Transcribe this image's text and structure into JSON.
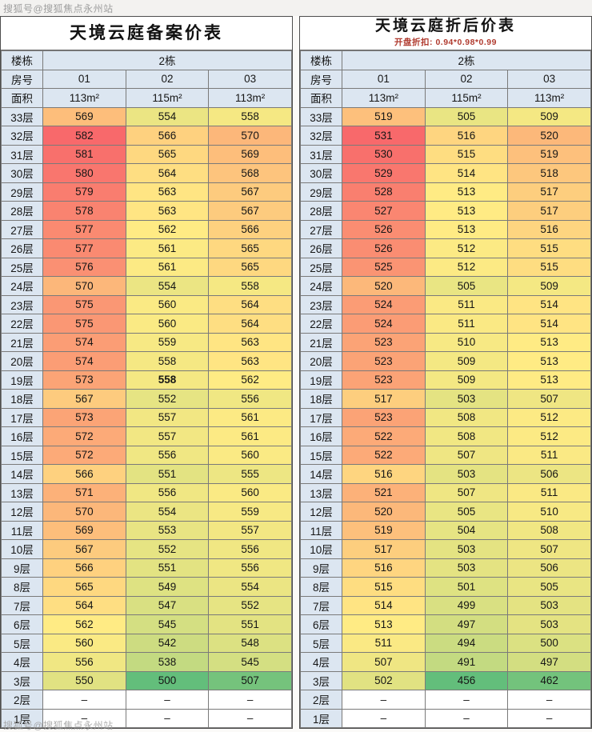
{
  "watermark": "搜狐号@搜狐焦点永州站",
  "header": {
    "building_label": "楼栋",
    "building_value": "2栋",
    "room_label": "房号",
    "rooms": [
      "01",
      "02",
      "03"
    ],
    "area_label": "面积",
    "areas": [
      "113m²",
      "115m²",
      "113m²"
    ]
  },
  "floors": [
    "33层",
    "32层",
    "31层",
    "30层",
    "29层",
    "28层",
    "27层",
    "26层",
    "25层",
    "24层",
    "23层",
    "22层",
    "21层",
    "20层",
    "19层",
    "18层",
    "17层",
    "16层",
    "15层",
    "14层",
    "13层",
    "12层",
    "11层",
    "10层",
    "9层",
    "8层",
    "7层",
    "6层",
    "5层",
    "4层",
    "3层",
    "2层",
    "1层"
  ],
  "dash": "–",
  "chart_data": [
    {
      "type": "heatmap",
      "title": "天境云庭备案价表",
      "subtitle": "",
      "columns": [
        "01",
        "02",
        "03"
      ],
      "values": [
        [
          569,
          554,
          558
        ],
        [
          582,
          566,
          570
        ],
        [
          581,
          565,
          569
        ],
        [
          580,
          564,
          568
        ],
        [
          579,
          563,
          567
        ],
        [
          578,
          563,
          567
        ],
        [
          577,
          562,
          566
        ],
        [
          577,
          561,
          565
        ],
        [
          576,
          561,
          565
        ],
        [
          570,
          554,
          558
        ],
        [
          575,
          560,
          564
        ],
        [
          575,
          560,
          564
        ],
        [
          574,
          559,
          563
        ],
        [
          574,
          558,
          563
        ],
        [
          573,
          558,
          562
        ],
        [
          567,
          552,
          556
        ],
        [
          573,
          557,
          561
        ],
        [
          572,
          557,
          561
        ],
        [
          572,
          556,
          560
        ],
        [
          566,
          551,
          555
        ],
        [
          571,
          556,
          560
        ],
        [
          570,
          554,
          559
        ],
        [
          569,
          553,
          557
        ],
        [
          567,
          552,
          556
        ],
        [
          566,
          551,
          556
        ],
        [
          565,
          549,
          554
        ],
        [
          564,
          547,
          552
        ],
        [
          562,
          545,
          551
        ],
        [
          560,
          542,
          548
        ],
        [
          556,
          538,
          545
        ],
        [
          550,
          500,
          507
        ],
        [
          null,
          null,
          null
        ],
        [
          null,
          null,
          null
        ]
      ]
    },
    {
      "type": "heatmap",
      "title": "天境云庭折后价表",
      "subtitle": "开盘折扣: 0.94*0.98*0.99",
      "columns": [
        "01",
        "02",
        "03"
      ],
      "values": [
        [
          519,
          505,
          509
        ],
        [
          531,
          516,
          520
        ],
        [
          530,
          515,
          519
        ],
        [
          529,
          514,
          518
        ],
        [
          528,
          513,
          517
        ],
        [
          527,
          513,
          517
        ],
        [
          526,
          513,
          516
        ],
        [
          526,
          512,
          515
        ],
        [
          525,
          512,
          515
        ],
        [
          520,
          505,
          509
        ],
        [
          524,
          511,
          514
        ],
        [
          524,
          511,
          514
        ],
        [
          523,
          510,
          513
        ],
        [
          523,
          509,
          513
        ],
        [
          523,
          509,
          513
        ],
        [
          517,
          503,
          507
        ],
        [
          523,
          508,
          512
        ],
        [
          522,
          508,
          512
        ],
        [
          522,
          507,
          511
        ],
        [
          516,
          503,
          506
        ],
        [
          521,
          507,
          511
        ],
        [
          520,
          505,
          510
        ],
        [
          519,
          504,
          508
        ],
        [
          517,
          503,
          507
        ],
        [
          516,
          503,
          506
        ],
        [
          515,
          501,
          505
        ],
        [
          514,
          499,
          503
        ],
        [
          513,
          497,
          503
        ],
        [
          511,
          494,
          500
        ],
        [
          507,
          491,
          497
        ],
        [
          502,
          456,
          462
        ],
        [
          null,
          null,
          null
        ],
        [
          null,
          null,
          null
        ]
      ]
    }
  ],
  "bold_cells": [
    [
      0,
      14,
      1
    ]
  ],
  "colors": {
    "header_fill": "#DCE6F1",
    "scale_low": "#63BE7B",
    "scale_mid": "#FFEB84",
    "scale_high": "#F8696B",
    "subtitle_color": "#B03A2E"
  }
}
